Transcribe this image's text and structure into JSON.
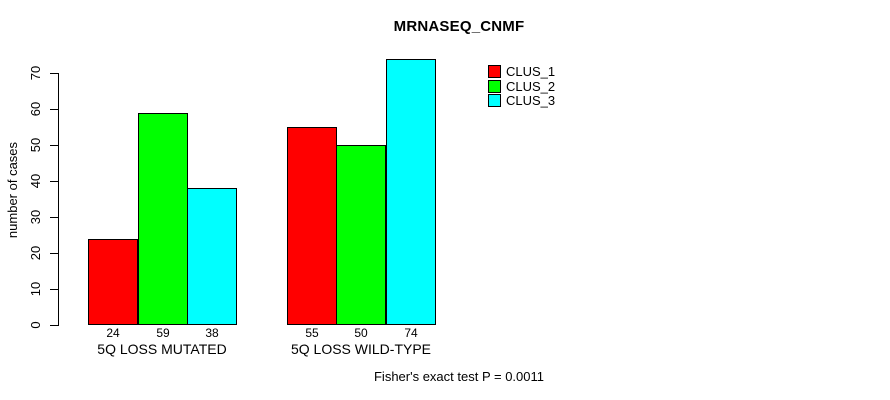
{
  "chart_data": {
    "type": "bar",
    "title": "MRNASEQ_CNMF",
    "ylabel": "number of cases",
    "xlabel": "",
    "note": "Fisher's exact test P = 0.0011",
    "ylim": [
      0,
      74
    ],
    "yticks": [
      0,
      10,
      20,
      30,
      40,
      50,
      60,
      70
    ],
    "grid": false,
    "legend_position": "topright",
    "categories": [
      "5Q LOSS MUTATED",
      "5Q LOSS WILD-TYPE"
    ],
    "series": [
      {
        "name": "CLUS_1",
        "color": "#FF0000",
        "values": [
          24,
          55
        ]
      },
      {
        "name": "CLUS_2",
        "color": "#00FF00",
        "values": [
          59,
          50
        ]
      },
      {
        "name": "CLUS_3",
        "color": "#00FFFF",
        "values": [
          38,
          74
        ]
      }
    ],
    "show_bar_values": true,
    "colors": {
      "background": "#FFFFFF",
      "axis": "#000000",
      "text": "#000000"
    }
  }
}
